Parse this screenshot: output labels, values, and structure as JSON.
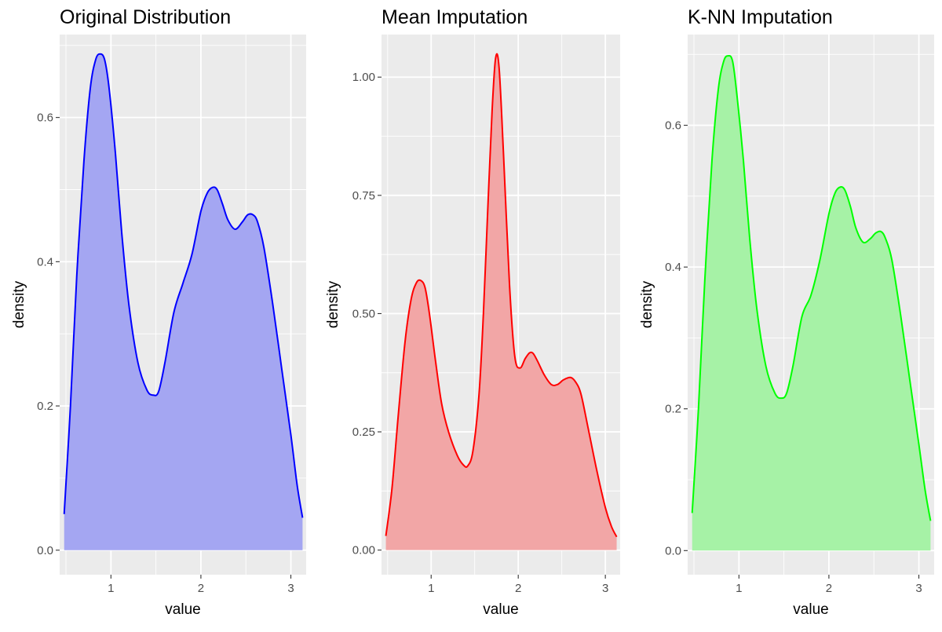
{
  "chart_data": [
    {
      "type": "area",
      "title": "Original Distribution",
      "xlabel": "value",
      "ylabel": "density",
      "xlim": [
        0.43,
        3.17
      ],
      "ylim": [
        -0.034,
        0.715
      ],
      "xticks": [
        "1",
        "2",
        "3"
      ],
      "yticks": [
        "0.0",
        "0.2",
        "0.4",
        "0.6"
      ],
      "grid": true,
      "line_color": "#0000ff",
      "fill_color": "#a4a6f2",
      "series": [
        {
          "x": [
            0.48,
            0.55,
            0.62,
            0.7,
            0.77,
            0.83,
            0.88,
            0.93,
            0.98,
            1.05,
            1.12,
            1.2,
            1.3,
            1.4,
            1.47,
            1.53,
            1.6,
            1.7,
            1.8,
            1.9,
            2.0,
            2.07,
            2.13,
            2.18,
            2.24,
            2.3,
            2.38,
            2.46,
            2.52,
            2.58,
            2.63,
            2.7,
            2.8,
            2.9,
            3.0,
            3.07,
            3.13
          ],
          "y": [
            0.05,
            0.2,
            0.38,
            0.54,
            0.64,
            0.68,
            0.688,
            0.68,
            0.64,
            0.55,
            0.44,
            0.34,
            0.26,
            0.222,
            0.215,
            0.22,
            0.26,
            0.33,
            0.37,
            0.41,
            0.47,
            0.495,
            0.503,
            0.5,
            0.48,
            0.458,
            0.445,
            0.455,
            0.465,
            0.465,
            0.455,
            0.42,
            0.34,
            0.25,
            0.16,
            0.09,
            0.045
          ]
        }
      ]
    },
    {
      "type": "area",
      "title": "Mean Imputation",
      "xlabel": "value",
      "ylabel": "density",
      "xlim": [
        0.43,
        3.17
      ],
      "ylim": [
        -0.052,
        1.09
      ],
      "xticks": [
        "1",
        "2",
        "3"
      ],
      "yticks": [
        "0.00",
        "0.25",
        "0.50",
        "0.75",
        "1.00"
      ],
      "grid": true,
      "line_color": "#ff0000",
      "fill_color": "#f2a6a6",
      "series": [
        {
          "x": [
            0.48,
            0.55,
            0.62,
            0.7,
            0.77,
            0.83,
            0.88,
            0.93,
            0.98,
            1.05,
            1.12,
            1.2,
            1.3,
            1.37,
            1.42,
            1.48,
            1.55,
            1.6,
            1.65,
            1.7,
            1.74,
            1.78,
            1.83,
            1.9,
            1.96,
            2.02,
            2.08,
            2.13,
            2.17,
            2.22,
            2.3,
            2.38,
            2.45,
            2.52,
            2.6,
            2.66,
            2.72,
            2.8,
            2.9,
            3.0,
            3.07,
            3.13
          ],
          "y": [
            0.03,
            0.13,
            0.28,
            0.44,
            0.53,
            0.565,
            0.57,
            0.555,
            0.5,
            0.4,
            0.31,
            0.25,
            0.2,
            0.18,
            0.178,
            0.21,
            0.33,
            0.5,
            0.72,
            0.93,
            1.04,
            1.02,
            0.84,
            0.56,
            0.41,
            0.385,
            0.405,
            0.417,
            0.416,
            0.4,
            0.37,
            0.35,
            0.35,
            0.36,
            0.365,
            0.355,
            0.33,
            0.26,
            0.17,
            0.09,
            0.05,
            0.028
          ]
        }
      ]
    },
    {
      "type": "area",
      "title": "K-NN Imputation",
      "xlabel": "value",
      "ylabel": "density",
      "xlim": [
        0.43,
        3.17
      ],
      "ylim": [
        -0.034,
        0.728
      ],
      "xticks": [
        "1",
        "2",
        "3"
      ],
      "yticks": [
        "0.0",
        "0.2",
        "0.4",
        "0.6"
      ],
      "grid": true,
      "line_color": "#00ff00",
      "fill_color": "#a6f2a6",
      "series": [
        {
          "x": [
            0.48,
            0.55,
            0.62,
            0.7,
            0.77,
            0.83,
            0.88,
            0.93,
            0.98,
            1.05,
            1.12,
            1.2,
            1.3,
            1.4,
            1.47,
            1.53,
            1.6,
            1.7,
            1.8,
            1.9,
            2.0,
            2.07,
            2.13,
            2.18,
            2.24,
            2.3,
            2.38,
            2.46,
            2.52,
            2.58,
            2.63,
            2.7,
            2.8,
            2.9,
            3.0,
            3.07,
            3.13
          ],
          "y": [
            0.053,
            0.2,
            0.38,
            0.55,
            0.65,
            0.69,
            0.698,
            0.69,
            0.64,
            0.55,
            0.44,
            0.34,
            0.26,
            0.222,
            0.215,
            0.222,
            0.26,
            0.33,
            0.36,
            0.41,
            0.475,
            0.505,
            0.513,
            0.508,
            0.485,
            0.455,
            0.435,
            0.44,
            0.448,
            0.45,
            0.44,
            0.41,
            0.33,
            0.24,
            0.15,
            0.085,
            0.042
          ]
        }
      ]
    }
  ]
}
